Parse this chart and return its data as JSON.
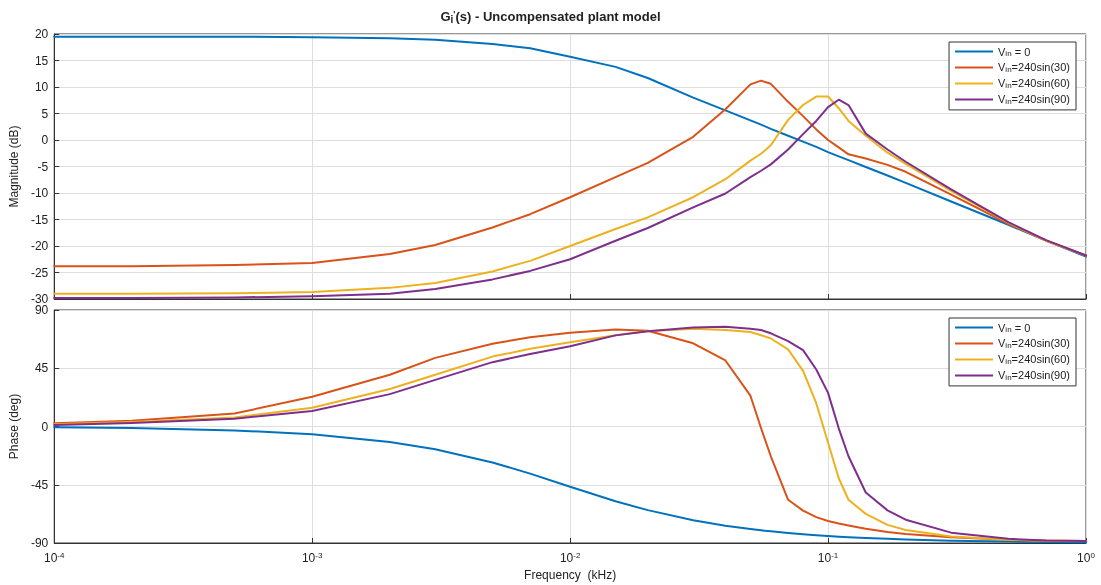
{
  "chart_data": [
    {
      "type": "line",
      "title": "G$_{i}$$^{'}$(s) - Uncompensated plant model",
      "ylabel": "Magnitude (dB)",
      "x": [
        0.0001,
        0.0002,
        0.0005,
        0.001,
        0.002,
        0.003,
        0.005,
        0.007,
        0.01,
        0.015,
        0.02,
        0.03,
        0.04,
        0.05,
        0.055,
        0.06,
        0.07,
        0.08,
        0.09,
        0.1,
        0.11,
        0.12,
        0.14,
        0.17,
        0.2,
        0.3,
        0.5,
        0.7,
        1
      ],
      "series": [
        {
          "name": "V$_{in}$ = 0",
          "color": "#0072bd",
          "values": [
            19.5,
            19.5,
            19.5,
            19.4,
            19.2,
            18.9,
            18.1,
            17.3,
            15.7,
            13.8,
            11.7,
            8.0,
            5.6,
            3.7,
            2.9,
            2.1,
            0.8,
            -0.3,
            -1.3,
            -2.3,
            -3.1,
            -3.8,
            -5.1,
            -6.7,
            -8.1,
            -11.6,
            -16,
            -19,
            -22
          ]
        },
        {
          "name": "V$_{in}$=240sin(30)",
          "color": "#d95319",
          "values": [
            -23.8,
            -23.8,
            -23.6,
            -23.2,
            -21.5,
            -19.8,
            -16.5,
            -14,
            -10.8,
            -7,
            -4.3,
            0.6,
            5.8,
            10.5,
            11.2,
            10.6,
            7.2,
            4.5,
            2,
            0,
            -1.4,
            -2.7,
            -3.5,
            -4.7,
            -6,
            -10.3,
            -15.8,
            -19,
            -21.8
          ]
        },
        {
          "name": "V$_{in}$=240sin(60)",
          "color": "#edb120",
          "values": [
            -29,
            -29,
            -28.9,
            -28.7,
            -27.9,
            -27,
            -24.8,
            -22.8,
            -20,
            -16.8,
            -14.6,
            -10.8,
            -7.4,
            -3.9,
            -2.6,
            -1,
            3.8,
            6.6,
            8.2,
            8.2,
            6,
            3.6,
            0.8,
            -2.4,
            -4.5,
            -9.6,
            -15.6,
            -19,
            -21.8
          ]
        },
        {
          "name": "V$_{in}$=240sin(90)",
          "color": "#7e2f8e",
          "values": [
            -29.8,
            -29.8,
            -29.7,
            -29.5,
            -29,
            -28.1,
            -26.3,
            -24.7,
            -22.5,
            -19,
            -16.6,
            -12.7,
            -10.1,
            -7,
            -5.8,
            -4.6,
            -1.8,
            1.1,
            3.6,
            6.2,
            7.6,
            6.6,
            1.2,
            -1.8,
            -4.1,
            -9.3,
            -15.5,
            -18.9,
            -21.8
          ]
        }
      ],
      "xlim": [
        0.0001,
        1
      ],
      "ylim": [
        -30,
        20
      ],
      "xticks": [
        {
          "value": 0.0001,
          "label": null
        },
        {
          "value": 0.001,
          "label": null
        },
        {
          "value": 0.01,
          "label": null
        },
        {
          "value": 0.1,
          "label": null
        },
        {
          "value": 1,
          "label": null
        }
      ],
      "yticks": [
        -30,
        -25,
        -20,
        -15,
        -10,
        -5,
        0,
        5,
        10,
        15,
        20
      ],
      "log": "x",
      "grid": true,
      "legend": "top right",
      "marker": "none",
      "line_style": "solid",
      "tick_labels": "y"
    },
    {
      "type": "line",
      "xlabel": "Frequency  (kHz)",
      "ylabel": "Phase (deg)",
      "x": [
        0.0001,
        0.0002,
        0.0005,
        0.001,
        0.002,
        0.003,
        0.005,
        0.007,
        0.01,
        0.015,
        0.02,
        0.03,
        0.04,
        0.05,
        0.055,
        0.06,
        0.07,
        0.08,
        0.09,
        0.1,
        0.11,
        0.12,
        0.14,
        0.17,
        0.2,
        0.3,
        0.5,
        0.7,
        1
      ],
      "series": [
        {
          "name": "V$_{in}$ = 0",
          "color": "#0072bd",
          "values": [
            -0.6,
            -1.2,
            -3,
            -6,
            -11.9,
            -17.5,
            -27.8,
            -36.4,
            -46.5,
            -57.7,
            -64.6,
            -72.4,
            -76.6,
            -79.2,
            -80.2,
            -81,
            -82.3,
            -83.2,
            -84,
            -84.6,
            -85.1,
            -85.5,
            -86.1,
            -86.8,
            -87.3,
            -88.2,
            -88.9,
            -89.2,
            -89.5
          ]
        },
        {
          "name": "V$_{in}$=240sin(30)",
          "color": "#d95319",
          "values": [
            2.5,
            4.5,
            10,
            23,
            40,
            53,
            64,
            69,
            72.5,
            75,
            74,
            64.3,
            51,
            23.8,
            -1.4,
            -23,
            -56.6,
            -65,
            -70,
            -73,
            -75,
            -76.5,
            -79,
            -81.5,
            -83,
            -85.5,
            -87.5,
            -88.3,
            -88.5
          ]
        },
        {
          "name": "V$_{in}$=240sin(60)",
          "color": "#edb120",
          "values": [
            1.7,
            3.5,
            7,
            14.5,
            29,
            40,
            54,
            60,
            65,
            70.5,
            73.6,
            75.5,
            74.5,
            73,
            70.5,
            68,
            59.6,
            43,
            18,
            -12.5,
            -40,
            -56.6,
            -67.5,
            -76,
            -80,
            -85,
            -87.5,
            -88.3,
            -88.5
          ]
        },
        {
          "name": "V$_{in}$=240sin(90)",
          "color": "#7e2f8e",
          "values": [
            1.2,
            2.8,
            6,
            12,
            25,
            36,
            49.7,
            56,
            62,
            70.4,
            73.6,
            76.5,
            77,
            75.5,
            74.5,
            72,
            66,
            59,
            44,
            26,
            -1.4,
            -23,
            -51,
            -64.8,
            -72,
            -82,
            -86.8,
            -88,
            -88.5
          ]
        }
      ],
      "xlim": [
        0.0001,
        1
      ],
      "ylim": [
        -90,
        90
      ],
      "xticks": [
        {
          "value": 0.0001,
          "label": "10$^{-4}$"
        },
        {
          "value": 0.001,
          "label": "10$^{-3}$"
        },
        {
          "value": 0.01,
          "label": "10$^{-2}$"
        },
        {
          "value": 0.1,
          "label": "10$^{-1}$"
        },
        {
          "value": 1,
          "label": "10$^{0}$"
        }
      ],
      "yticks": [
        -90,
        -45,
        0,
        45,
        90
      ],
      "log": "x",
      "grid": true,
      "legend": "top right",
      "marker": "none",
      "line_style": "solid"
    }
  ]
}
